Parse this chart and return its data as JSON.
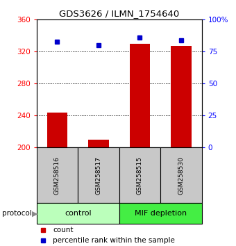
{
  "title": "GDS3626 / ILMN_1754640",
  "samples": [
    "GSM258516",
    "GSM258517",
    "GSM258515",
    "GSM258530"
  ],
  "counts": [
    244,
    210,
    330,
    327
  ],
  "percentile_ranks": [
    83,
    80,
    86,
    84
  ],
  "ylim_left": [
    200,
    360
  ],
  "ylim_right": [
    0,
    100
  ],
  "yticks_left": [
    200,
    240,
    280,
    320,
    360
  ],
  "ytick_labels_left": [
    "200",
    "240",
    "280",
    "320",
    "360"
  ],
  "yticks_right": [
    0,
    25,
    50,
    75,
    100
  ],
  "ytick_labels_right": [
    "0",
    "25",
    "50",
    "75",
    "100%"
  ],
  "bar_color": "#cc0000",
  "marker_color": "#0000cc",
  "bar_width": 0.5,
  "sample_box_color": "#c8c8c8",
  "control_color": "#bbffbb",
  "mif_color": "#44ee44",
  "legend_count_color": "#cc0000",
  "legend_pct_color": "#0000cc",
  "grid_yticks": [
    240,
    280,
    320
  ]
}
